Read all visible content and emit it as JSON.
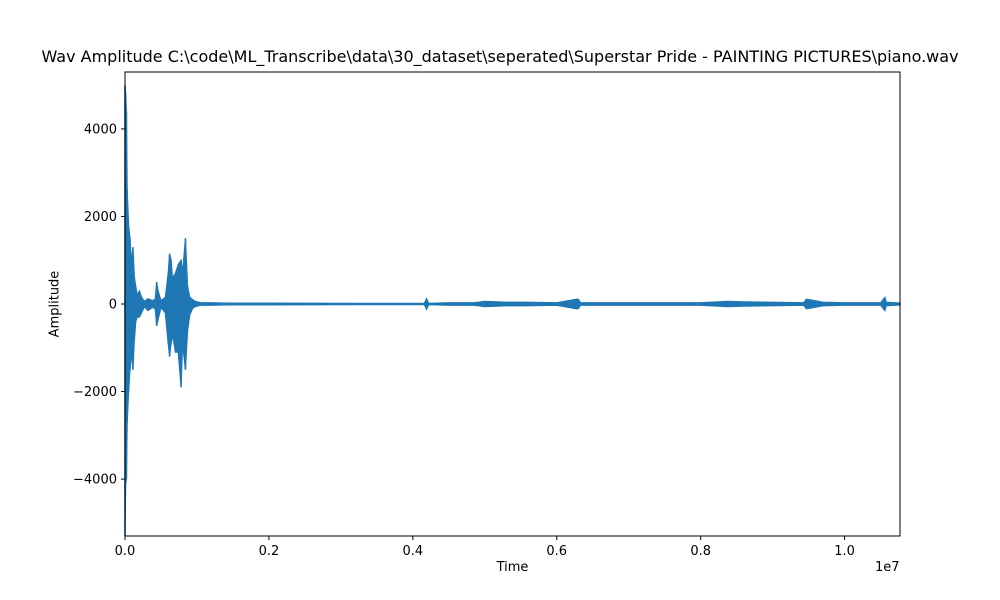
{
  "chart_data": {
    "type": "line",
    "title": "Wav Amplitude C:\\code\\ML_Transcribe\\data\\30_dataset\\seperated\\Superstar Pride - PAINTING PICTURES\\piano.wav",
    "xlabel": "Time",
    "ylabel": "Amplitude",
    "x_offset_label": "1e7",
    "xlim": [
      0,
      10770000
    ],
    "ylim": [
      -5300,
      5300
    ],
    "x_ticks": [
      0,
      2000000,
      4000000,
      6000000,
      8000000,
      10000000
    ],
    "x_tick_labels": [
      "0.0",
      "0.2",
      "0.4",
      "0.6",
      "0.8",
      "1.0"
    ],
    "y_ticks": [
      -4000,
      -2000,
      0,
      2000,
      4000
    ],
    "y_tick_labels": [
      "−4000",
      "−2000",
      "0",
      "2000",
      "4000"
    ],
    "line_color": "#1f77b4",
    "envelope": {
      "x": [
        0,
        10000,
        20000,
        30000,
        50000,
        70000,
        90000,
        110000,
        130000,
        150000,
        170000,
        200000,
        230000,
        270000,
        320000,
        380000,
        420000,
        440000,
        460000,
        500000,
        560000,
        600000,
        620000,
        640000,
        660000,
        700000,
        740000,
        780000,
        800000,
        840000,
        870000,
        900000,
        940000,
        980000,
        1050000,
        1200000,
        1400000,
        2100000,
        3200000,
        4160000,
        4190000,
        4220000,
        4500000,
        4850000,
        5000000,
        5300000,
        5600000,
        6000000,
        6270000,
        6300000,
        6330000,
        7000000,
        8000000,
        8380000,
        8600000,
        9430000,
        9470000,
        9700000,
        10000000,
        10500000,
        10560000,
        10580000,
        10770000
      ],
      "max": [
        5000,
        4800,
        4400,
        2600,
        1800,
        1500,
        900,
        1300,
        600,
        400,
        200,
        300,
        150,
        60,
        120,
        80,
        100,
        500,
        300,
        80,
        150,
        700,
        1150,
        1000,
        600,
        700,
        900,
        1000,
        700,
        1500,
        400,
        150,
        100,
        60,
        30,
        30,
        20,
        20,
        15,
        15,
        120,
        15,
        30,
        30,
        60,
        40,
        40,
        30,
        110,
        110,
        30,
        30,
        30,
        60,
        50,
        30,
        110,
        40,
        30,
        30,
        150,
        40,
        20
      ],
      "min": [
        -5300,
        -4100,
        -4000,
        -2700,
        -2000,
        -1500,
        -1100,
        -1500,
        -800,
        -400,
        -300,
        -300,
        -200,
        -60,
        -150,
        -80,
        -100,
        -500,
        -350,
        -80,
        -200,
        -900,
        -1200,
        -900,
        -700,
        -1100,
        -1100,
        -1900,
        -900,
        -1500,
        -600,
        -250,
        -100,
        -60,
        -30,
        -30,
        -20,
        -20,
        -15,
        -15,
        -120,
        -15,
        -30,
        -30,
        -60,
        -40,
        -40,
        -30,
        -110,
        -110,
        -30,
        -30,
        -30,
        -60,
        -50,
        -30,
        -110,
        -40,
        -30,
        -30,
        -150,
        -40,
        -20
      ]
    }
  }
}
